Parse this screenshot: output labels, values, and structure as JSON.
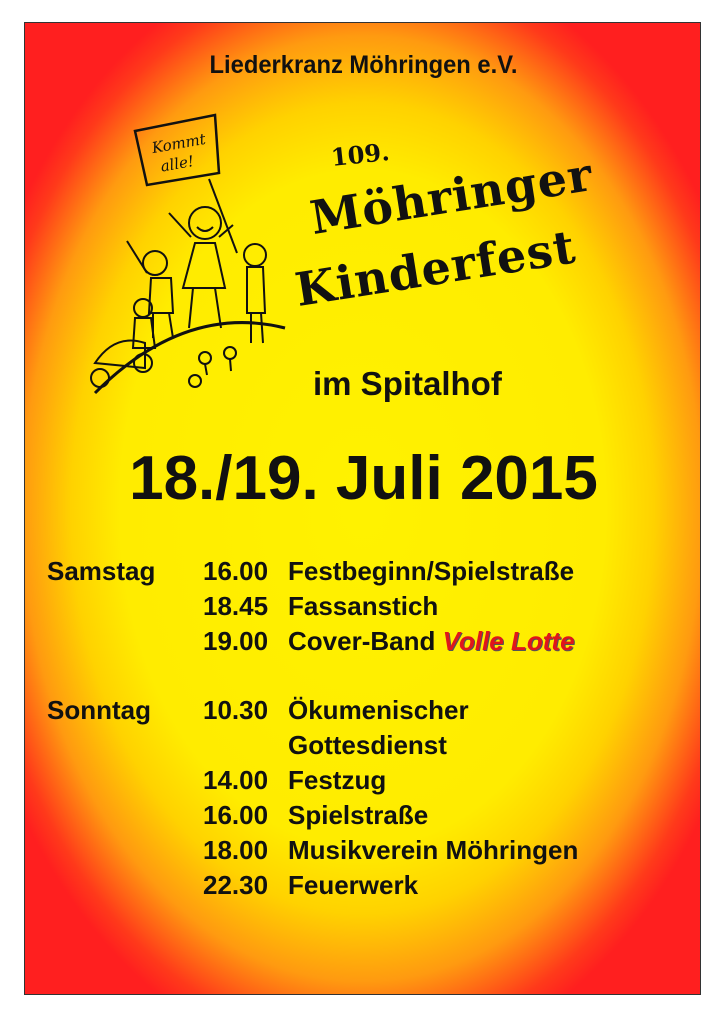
{
  "organizer": "Liederkranz Möhringen e.V.",
  "edition": "109.",
  "title_line1": "Möhringer",
  "title_line2": "Kinderfest",
  "sign_text": [
    "Kommt",
    "alle!"
  ],
  "location": "im Spitalhof",
  "date": "18./19. Juli 2015",
  "colors": {
    "outer": "#ff1f1f",
    "center": "#fff200",
    "band": "#e0161b"
  },
  "schedule": {
    "saturday": {
      "day": "Samstag",
      "items": [
        {
          "time": "16.00",
          "event": "Festbeginn/Spielstraße"
        },
        {
          "time": "18.45",
          "event": "Fassanstich"
        },
        {
          "time": "19.00",
          "event": "Cover-Band",
          "highlight": "Volle Lotte"
        }
      ]
    },
    "sunday": {
      "day": "Sonntag",
      "items": [
        {
          "time": "10.30",
          "event": "Ökumenischer",
          "event_line2": "Gottesdienst"
        },
        {
          "time": "14.00",
          "event": "Festzug"
        },
        {
          "time": "16.00",
          "event": "Spielstraße"
        },
        {
          "time": "18.00",
          "event": "Musikverein Möhringen"
        },
        {
          "time": "22.30",
          "event": "Feuerwerk"
        }
      ]
    }
  }
}
